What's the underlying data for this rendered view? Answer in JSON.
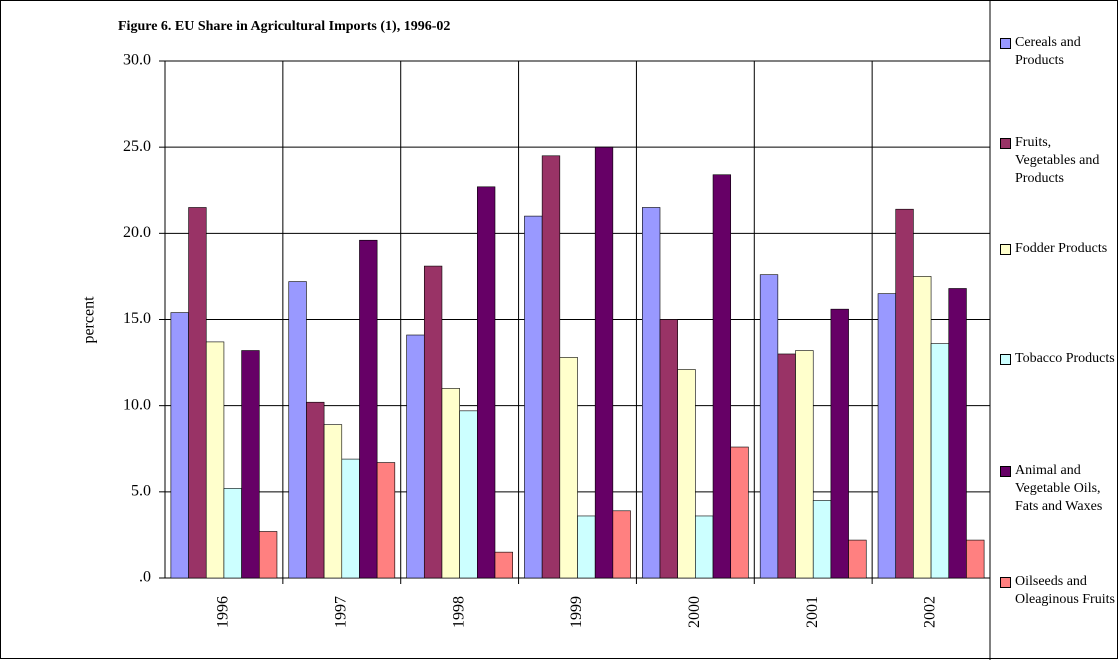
{
  "chart_data": {
    "type": "bar",
    "title": "Figure 6. EU Share in Agricultural Imports (1), 1996-02",
    "y_label": "percent",
    "categories": [
      "1996",
      "1997",
      "1998",
      "1999",
      "2000",
      "2001",
      "2002"
    ],
    "series": [
      {
        "name": "Cereals and Products",
        "color": "#9999ff",
        "values": [
          15.4,
          17.2,
          14.1,
          21.0,
          21.5,
          17.6,
          16.5
        ]
      },
      {
        "name": "Fruits, Vegetables and Products",
        "color": "#993366",
        "values": [
          21.5,
          10.2,
          18.1,
          24.5,
          15.0,
          13.0,
          21.4
        ]
      },
      {
        "name": "Fodder Products",
        "color": "#ffffcc",
        "values": [
          13.7,
          8.9,
          11.0,
          12.8,
          12.1,
          13.2,
          17.5
        ]
      },
      {
        "name": "Tobacco Products",
        "color": "#ccffff",
        "values": [
          5.2,
          6.9,
          9.7,
          3.6,
          3.6,
          4.5,
          13.6
        ]
      },
      {
        "name": "Animal and Vegetable Oils, Fats and Waxes",
        "color": "#660066",
        "values": [
          13.2,
          19.6,
          22.7,
          25.0,
          23.4,
          15.6,
          16.8
        ]
      },
      {
        "name": "Oilseeds and Oleaginous Fruits",
        "color": "#ff8080",
        "values": [
          2.7,
          6.7,
          1.5,
          3.9,
          7.6,
          2.2,
          2.2
        ]
      }
    ],
    "ylim": [
      0,
      30
    ],
    "yticks": [
      {
        "value": 0,
        "label": ".0"
      },
      {
        "value": 5,
        "label": "5.0"
      },
      {
        "value": 10,
        "label": "10.0"
      },
      {
        "value": 15,
        "label": "15.0"
      },
      {
        "value": 20,
        "label": "20.0"
      },
      {
        "value": 25,
        "label": "25.0"
      },
      {
        "value": 30,
        "label": "30.0"
      }
    ],
    "grid": true
  }
}
